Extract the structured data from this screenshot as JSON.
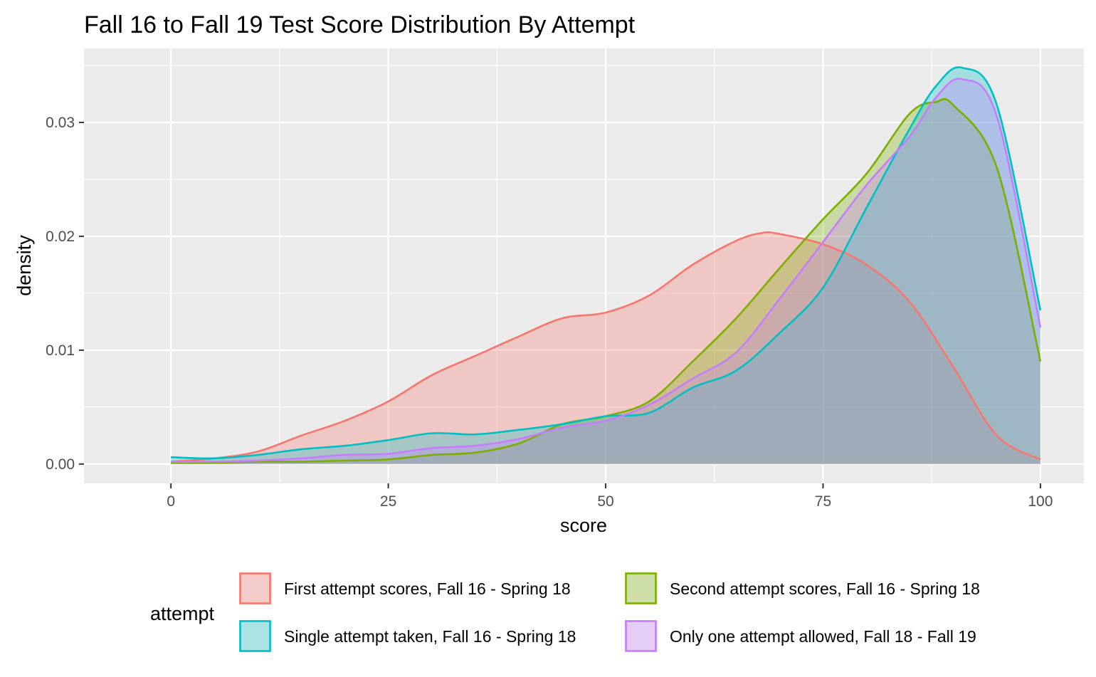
{
  "chart_data": {
    "type": "area",
    "title": "Fall 16 to Fall 19 Test Score Distribution By Attempt",
    "xlabel": "score",
    "ylabel": "density",
    "xlim": [
      -10,
      105
    ],
    "ylim": [
      -0.0017,
      0.0365
    ],
    "x_ticks": [
      0,
      25,
      50,
      75,
      100
    ],
    "x_tick_labels": [
      "0",
      "25",
      "50",
      "75",
      "100"
    ],
    "y_ticks": [
      0,
      0.01,
      0.02,
      0.03
    ],
    "y_tick_labels": [
      "0.00",
      "0.01",
      "0.02",
      "0.03"
    ],
    "grid": true,
    "legend_title": "attempt",
    "legend_position": "bottom",
    "series": [
      {
        "name": "First attempt scores, Fall 16 - Spring 18",
        "color": "#F8766D",
        "x": [
          0,
          5,
          10,
          15,
          20,
          25,
          30,
          35,
          40,
          45,
          50,
          55,
          60,
          65,
          68,
          70,
          75,
          80,
          85,
          90,
          95,
          100
        ],
        "values": [
          0.0002,
          0.0005,
          0.0011,
          0.0025,
          0.0038,
          0.0055,
          0.0078,
          0.0095,
          0.0112,
          0.0128,
          0.0133,
          0.0148,
          0.0175,
          0.0196,
          0.0203,
          0.0202,
          0.0193,
          0.0175,
          0.0142,
          0.0085,
          0.0025,
          0.0004
        ]
      },
      {
        "name": "Second attempt scores, Fall 16 - Spring 18",
        "color": "#7CAE00",
        "x": [
          0,
          5,
          10,
          15,
          20,
          25,
          30,
          35,
          40,
          45,
          50,
          55,
          60,
          65,
          70,
          75,
          80,
          85,
          88,
          90,
          95,
          100
        ],
        "values": [
          0.0001,
          0.0001,
          0.0002,
          0.0002,
          0.0003,
          0.0004,
          0.0008,
          0.001,
          0.0018,
          0.0035,
          0.0042,
          0.0055,
          0.009,
          0.0128,
          0.0172,
          0.0215,
          0.0255,
          0.0308,
          0.0318,
          0.0315,
          0.026,
          0.009
        ]
      },
      {
        "name": "Single attempt taken, Fall 16 - Spring 18",
        "color": "#00BFC4",
        "x": [
          0,
          5,
          10,
          15,
          20,
          25,
          30,
          35,
          40,
          45,
          50,
          55,
          60,
          65,
          70,
          75,
          80,
          85,
          88,
          91,
          95,
          100
        ],
        "values": [
          0.0006,
          0.0005,
          0.0008,
          0.0013,
          0.0016,
          0.0021,
          0.0027,
          0.0026,
          0.003,
          0.0035,
          0.0042,
          0.0045,
          0.0067,
          0.0082,
          0.0115,
          0.0155,
          0.0225,
          0.0295,
          0.0332,
          0.0348,
          0.0315,
          0.0135
        ]
      },
      {
        "name": "Only one attempt allowed, Fall 18 - Fall 19",
        "color": "#C77CFF",
        "x": [
          0,
          5,
          10,
          15,
          20,
          25,
          30,
          35,
          40,
          45,
          50,
          55,
          60,
          65,
          70,
          75,
          80,
          85,
          88,
          91,
          95,
          100
        ],
        "values": [
          0.0002,
          0.0002,
          0.0003,
          0.0005,
          0.0008,
          0.0009,
          0.0014,
          0.0016,
          0.0022,
          0.0032,
          0.0038,
          0.0052,
          0.0075,
          0.0098,
          0.0145,
          0.0195,
          0.0245,
          0.0288,
          0.0322,
          0.0338,
          0.0305,
          0.012
        ]
      }
    ]
  }
}
